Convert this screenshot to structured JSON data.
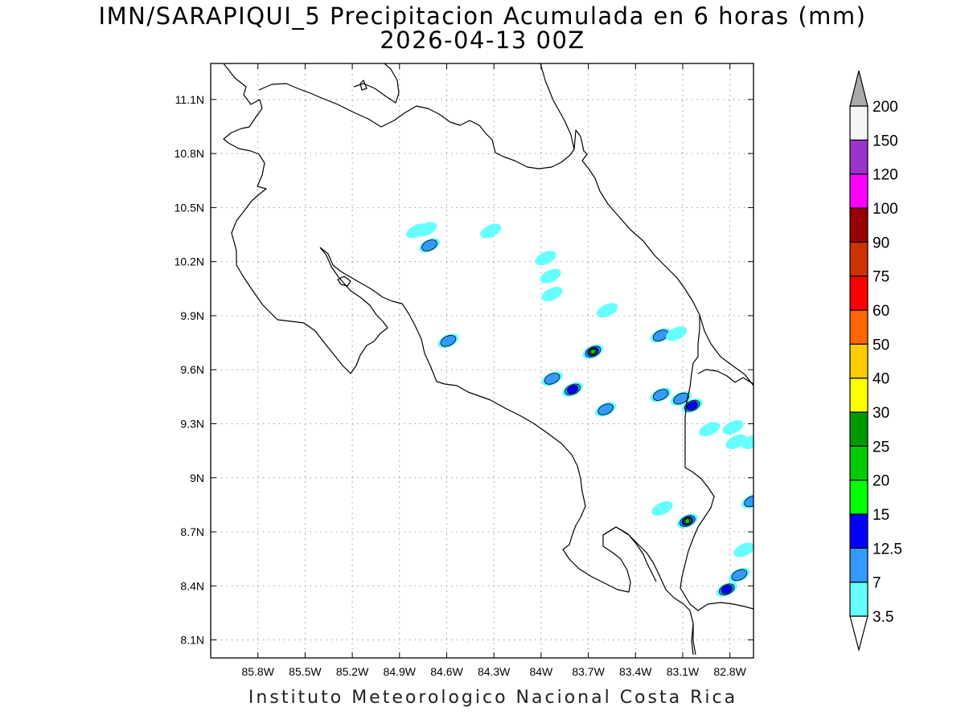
{
  "title": {
    "line1": "IMN/SARAPIQUI_5 Precipitacion Acumulada en 6 horas (mm)",
    "line2": "2026-04-13 00Z"
  },
  "footer": "Instituto Meteorologico Nacional Costa Rica",
  "map": {
    "lon_range": [
      -86.1,
      -82.65
    ],
    "lat_range": [
      8.0,
      11.3
    ],
    "lon_ticks": [
      {
        "value": -85.8,
        "label": "85.8W"
      },
      {
        "value": -85.5,
        "label": "85.5W"
      },
      {
        "value": -85.2,
        "label": "85.2W"
      },
      {
        "value": -84.9,
        "label": "84.9W"
      },
      {
        "value": -84.6,
        "label": "84.6W"
      },
      {
        "value": -84.3,
        "label": "84.3W"
      },
      {
        "value": -84.0,
        "label": "84W"
      },
      {
        "value": -83.7,
        "label": "83.7W"
      },
      {
        "value": -83.4,
        "label": "83.4W"
      },
      {
        "value": -83.1,
        "label": "83.1W"
      },
      {
        "value": -82.8,
        "label": "82.8W"
      }
    ],
    "lat_ticks": [
      {
        "value": 8.1,
        "label": "8.1N"
      },
      {
        "value": 8.4,
        "label": "8.4N"
      },
      {
        "value": 8.7,
        "label": "8.7N"
      },
      {
        "value": 9.0,
        "label": "9N"
      },
      {
        "value": 9.3,
        "label": "9.3N"
      },
      {
        "value": 9.6,
        "label": "9.6N"
      },
      {
        "value": 9.9,
        "label": "9.9N"
      },
      {
        "value": 10.2,
        "label": "10.2N"
      },
      {
        "value": 10.5,
        "label": "10.5N"
      },
      {
        "value": 10.8,
        "label": "10.8N"
      },
      {
        "value": 11.1,
        "label": "11.1N"
      }
    ],
    "grid": true,
    "precip_cells": [
      {
        "lon": -84.71,
        "lat": 10.29,
        "level": 2
      },
      {
        "lon": -84.73,
        "lat": 10.38,
        "level": 1
      },
      {
        "lon": -84.79,
        "lat": 10.37,
        "level": 1
      },
      {
        "lon": -84.32,
        "lat": 10.37,
        "level": 1
      },
      {
        "lon": -83.97,
        "lat": 10.22,
        "level": 1
      },
      {
        "lon": -83.94,
        "lat": 10.12,
        "level": 1
      },
      {
        "lon": -83.93,
        "lat": 10.02,
        "level": 1
      },
      {
        "lon": -83.58,
        "lat": 9.93,
        "level": 1
      },
      {
        "lon": -83.24,
        "lat": 9.79,
        "level": 2
      },
      {
        "lon": -83.14,
        "lat": 9.8,
        "level": 1
      },
      {
        "lon": -84.59,
        "lat": 9.76,
        "level": 2
      },
      {
        "lon": -83.67,
        "lat": 9.7,
        "level": 5
      },
      {
        "lon": -83.93,
        "lat": 9.55,
        "level": 2
      },
      {
        "lon": -83.8,
        "lat": 9.49,
        "level": 3
      },
      {
        "lon": -83.59,
        "lat": 9.38,
        "level": 2
      },
      {
        "lon": -83.24,
        "lat": 9.46,
        "level": 2
      },
      {
        "lon": -83.11,
        "lat": 9.44,
        "level": 2
      },
      {
        "lon": -83.04,
        "lat": 9.4,
        "level": 3
      },
      {
        "lon": -82.93,
        "lat": 9.27,
        "level": 1
      },
      {
        "lon": -82.78,
        "lat": 9.28,
        "level": 1
      },
      {
        "lon": -82.76,
        "lat": 9.2,
        "level": 1
      },
      {
        "lon": -82.66,
        "lat": 9.2,
        "level": 1
      },
      {
        "lon": -82.66,
        "lat": 8.87,
        "level": 2
      },
      {
        "lon": -83.07,
        "lat": 8.76,
        "level": 5
      },
      {
        "lon": -83.23,
        "lat": 8.83,
        "level": 1
      },
      {
        "lon": -82.71,
        "lat": 8.6,
        "level": 1
      },
      {
        "lon": -82.74,
        "lat": 8.46,
        "level": 2
      },
      {
        "lon": -82.82,
        "lat": 8.38,
        "level": 3
      }
    ]
  },
  "colorbar": {
    "labels": [
      "3.5",
      "7",
      "12.5",
      "15",
      "20",
      "25",
      "30",
      "40",
      "50",
      "60",
      "75",
      "90",
      "100",
      "120",
      "150",
      "200"
    ],
    "colors": [
      "#ffffff",
      "#66ffff",
      "#3399ff",
      "#0000ff",
      "#00ff00",
      "#00cc00",
      "#009900",
      "#ffff00",
      "#ffcc00",
      "#ff6600",
      "#ff0000",
      "#cc3300",
      "#990000",
      "#ff00ff",
      "#9933cc",
      "#f5f5f5",
      "#aaaaaa"
    ]
  }
}
